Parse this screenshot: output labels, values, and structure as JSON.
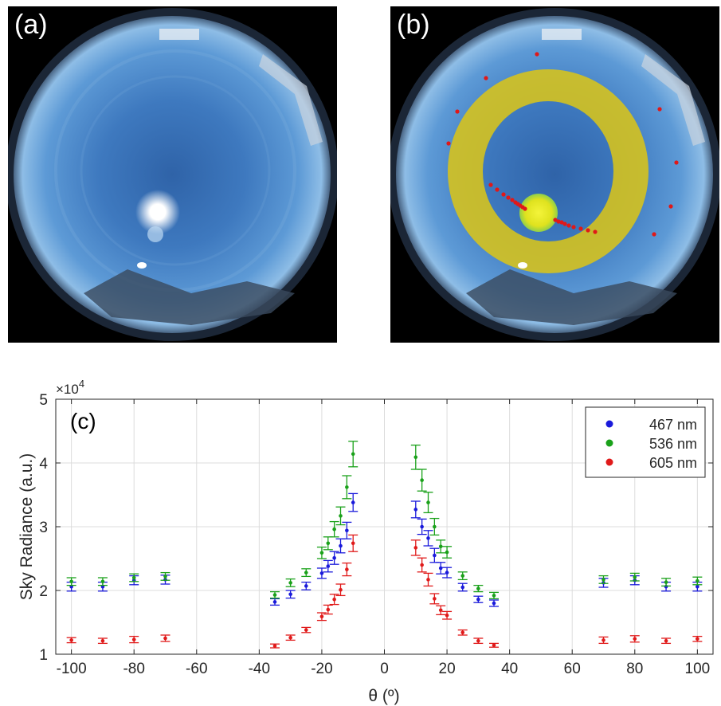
{
  "panels": [
    {
      "label": "(a)"
    },
    {
      "label": "(b)"
    }
  ],
  "chart_data": {
    "type": "scatter",
    "panel_label": "(c)",
    "xlabel": "θ (º)",
    "ylabel": "Sky Radiance (a.u.)",
    "exponent_label": "×10",
    "exponent_power": "4",
    "xlim": [
      -105,
      105
    ],
    "ylim": [
      1,
      5
    ],
    "xticks": [
      -100,
      -80,
      -60,
      -40,
      -20,
      0,
      20,
      40,
      60,
      80,
      100
    ],
    "yticks": [
      1,
      2,
      3,
      4,
      5
    ],
    "grid": true,
    "legend_position": "top-right",
    "series": [
      {
        "name": "467 nm",
        "color": "#1a1adb",
        "x": [
          -100,
          -90,
          -80,
          -70,
          -35,
          -30,
          -25,
          -20,
          -18,
          -16,
          -14,
          -12,
          -10,
          10,
          12,
          14,
          16,
          18,
          20,
          25,
          30,
          35,
          70,
          80,
          90,
          100
        ],
        "y": [
          2.06,
          2.06,
          2.16,
          2.17,
          1.82,
          1.94,
          2.07,
          2.27,
          2.38,
          2.51,
          2.7,
          2.94,
          3.38,
          3.27,
          3.0,
          2.82,
          2.55,
          2.35,
          2.28,
          2.05,
          1.86,
          1.8,
          2.12,
          2.16,
          2.06,
          2.06
        ],
        "err": [
          0.07,
          0.07,
          0.07,
          0.07,
          0.05,
          0.06,
          0.06,
          0.08,
          0.09,
          0.1,
          0.11,
          0.13,
          0.14,
          0.13,
          0.12,
          0.12,
          0.11,
          0.09,
          0.08,
          0.06,
          0.05,
          0.05,
          0.07,
          0.07,
          0.07,
          0.07
        ]
      },
      {
        "name": "536 nm",
        "color": "#1aa11a",
        "x": [
          -100,
          -90,
          -80,
          -70,
          -35,
          -30,
          -25,
          -20,
          -18,
          -16,
          -14,
          -12,
          -10,
          10,
          12,
          14,
          16,
          18,
          20,
          25,
          30,
          35,
          70,
          80,
          90,
          100
        ],
        "y": [
          2.14,
          2.14,
          2.2,
          2.22,
          1.93,
          2.12,
          2.28,
          2.59,
          2.74,
          2.96,
          3.17,
          3.62,
          4.14,
          4.09,
          3.73,
          3.38,
          3.0,
          2.69,
          2.6,
          2.23,
          2.03,
          1.92,
          2.17,
          2.21,
          2.13,
          2.15
        ],
        "err": [
          0.06,
          0.06,
          0.06,
          0.06,
          0.05,
          0.06,
          0.06,
          0.09,
          0.1,
          0.12,
          0.14,
          0.18,
          0.2,
          0.19,
          0.17,
          0.16,
          0.13,
          0.1,
          0.09,
          0.06,
          0.05,
          0.05,
          0.06,
          0.06,
          0.06,
          0.06
        ]
      },
      {
        "name": "605 nm",
        "color": "#e01a1a",
        "x": [
          -100,
          -90,
          -80,
          -70,
          -35,
          -30,
          -25,
          -20,
          -18,
          -16,
          -14,
          -12,
          -10,
          10,
          12,
          14,
          16,
          18,
          20,
          25,
          30,
          35,
          70,
          80,
          90,
          100
        ],
        "y": [
          1.22,
          1.21,
          1.23,
          1.25,
          1.13,
          1.26,
          1.38,
          1.59,
          1.7,
          1.86,
          2.01,
          2.33,
          2.74,
          2.67,
          2.4,
          2.17,
          1.87,
          1.69,
          1.61,
          1.34,
          1.21,
          1.14,
          1.22,
          1.24,
          1.21,
          1.24
        ],
        "err": [
          0.04,
          0.04,
          0.05,
          0.05,
          0.03,
          0.04,
          0.04,
          0.06,
          0.07,
          0.08,
          0.09,
          0.1,
          0.13,
          0.12,
          0.11,
          0.1,
          0.08,
          0.07,
          0.06,
          0.04,
          0.04,
          0.03,
          0.05,
          0.05,
          0.04,
          0.04
        ]
      }
    ]
  }
}
